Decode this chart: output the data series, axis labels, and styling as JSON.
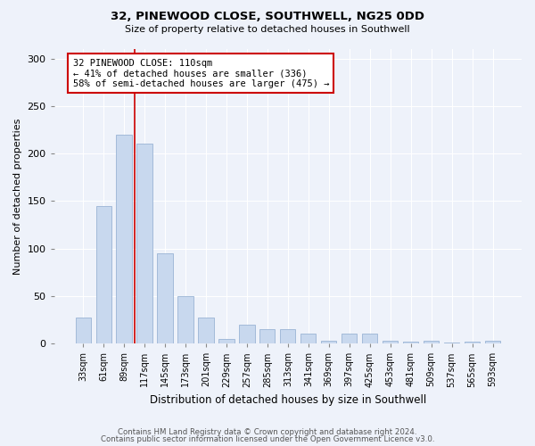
{
  "title1": "32, PINEWOOD CLOSE, SOUTHWELL, NG25 0DD",
  "title2": "Size of property relative to detached houses in Southwell",
  "xlabel": "Distribution of detached houses by size in Southwell",
  "ylabel": "Number of detached properties",
  "categories": [
    "33sqm",
    "61sqm",
    "89sqm",
    "117sqm",
    "145sqm",
    "173sqm",
    "201sqm",
    "229sqm",
    "257sqm",
    "285sqm",
    "313sqm",
    "341sqm",
    "369sqm",
    "397sqm",
    "425sqm",
    "453sqm",
    "481sqm",
    "509sqm",
    "537sqm",
    "565sqm",
    "593sqm"
  ],
  "values": [
    27,
    145,
    220,
    210,
    95,
    50,
    27,
    5,
    20,
    15,
    15,
    10,
    3,
    10,
    10,
    3,
    2,
    3,
    1,
    2,
    3
  ],
  "bar_color": "#c8d8ee",
  "bar_edge_color": "#9ab4d4",
  "vline_x": 2.5,
  "annotation_text": "32 PINEWOOD CLOSE: 110sqm\n← 41% of detached houses are smaller (336)\n58% of semi-detached houses are larger (475) →",
  "annotation_box_color": "#ffffff",
  "annotation_box_edge": "#cc0000",
  "vline_color": "#cc0000",
  "footer1": "Contains HM Land Registry data © Crown copyright and database right 2024.",
  "footer2": "Contains public sector information licensed under the Open Government Licence v3.0.",
  "background_color": "#eef2fa",
  "ylim": [
    0,
    310
  ],
  "yticks": [
    0,
    50,
    100,
    150,
    200,
    250,
    300
  ]
}
